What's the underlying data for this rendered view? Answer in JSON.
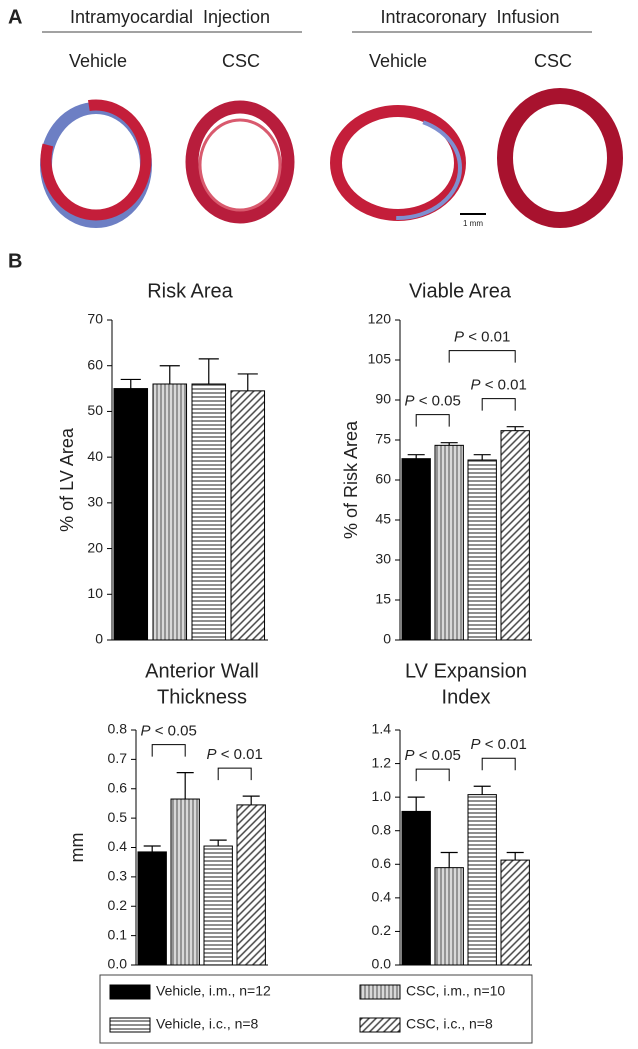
{
  "panel_a": {
    "label": "A",
    "groups": [
      {
        "title": "Intramyocardial  Injection",
        "columns": [
          "Vehicle",
          "CSC"
        ]
      },
      {
        "title": "Intracoronary  Infusion",
        "columns": [
          "Vehicle",
          "CSC"
        ]
      }
    ],
    "scale_bar": "1 mm"
  },
  "panel_b_label": "B",
  "series": [
    {
      "name": "Vehicle, i.m., n=12",
      "color": "#000000",
      "pattern": "solid"
    },
    {
      "name": "CSC, i.m., n=10",
      "color": "#9a9a9a",
      "pattern": "vertical"
    },
    {
      "name": "Vehicle, i.c., n=8",
      "color": "#555555",
      "pattern": "horizontal"
    },
    {
      "name": "CSC, i.c., n=8",
      "color": "#555555",
      "pattern": "diagonal"
    }
  ],
  "chart_data": [
    {
      "type": "bar",
      "title": [
        "Risk Area"
      ],
      "ylabel": "% of LV Area",
      "values": [
        55,
        56,
        56,
        54.5
      ],
      "errors": [
        2,
        4,
        5.5,
        3.7
      ],
      "ylim": [
        0,
        70
      ],
      "yticks": [
        0,
        10,
        20,
        30,
        40,
        50,
        60,
        70
      ],
      "annotations": []
    },
    {
      "type": "bar",
      "title": [
        "Viable Area"
      ],
      "ylabel": "% of Risk Area",
      "values": [
        68,
        73,
        67.5,
        78.5
      ],
      "errors": [
        1.5,
        1,
        2,
        1.5
      ],
      "ylim": [
        0,
        120
      ],
      "yticks": [
        0,
        15,
        30,
        45,
        60,
        75,
        90,
        105,
        120
      ],
      "annotations": [
        {
          "text": "P < 0.05",
          "from": 0,
          "to": 1
        },
        {
          "text": "P < 0.01",
          "from": 2,
          "to": 3
        },
        {
          "text": "P < 0.01",
          "from": 1,
          "to": 3
        }
      ]
    },
    {
      "type": "bar",
      "title": [
        "Anterior Wall",
        "Thickness"
      ],
      "ylabel": "mm",
      "values": [
        0.385,
        0.565,
        0.405,
        0.545
      ],
      "errors": [
        0.02,
        0.09,
        0.02,
        0.03
      ],
      "ylim": [
        0,
        0.8
      ],
      "yticks": [
        {
          "value": 0,
          "label": "0.0"
        },
        0.1,
        0.2,
        0.3,
        0.4,
        0.5,
        0.6,
        0.7,
        0.8
      ],
      "annotations": [
        {
          "text": "P < 0.05",
          "from": 0,
          "to": 1
        },
        {
          "text": "P < 0.01",
          "from": 2,
          "to": 3
        }
      ]
    },
    {
      "type": "bar",
      "title": [
        "LV Expansion",
        "Index"
      ],
      "values": [
        0.915,
        0.58,
        1.015,
        0.625
      ],
      "errors": [
        0.085,
        0.09,
        0.05,
        0.045
      ],
      "ylim": [
        0,
        1.4
      ],
      "yticks": [
        {
          "value": 0,
          "label": "0.0"
        },
        0.2,
        0.4,
        0.6,
        0.8,
        {
          "value": 1,
          "label": "1.0"
        },
        1.2,
        1.4
      ],
      "annotations": [
        {
          "text": "P < 0.05",
          "from": 0,
          "to": 1
        },
        {
          "text": "P < 0.01",
          "from": 2,
          "to": 3
        }
      ]
    }
  ]
}
